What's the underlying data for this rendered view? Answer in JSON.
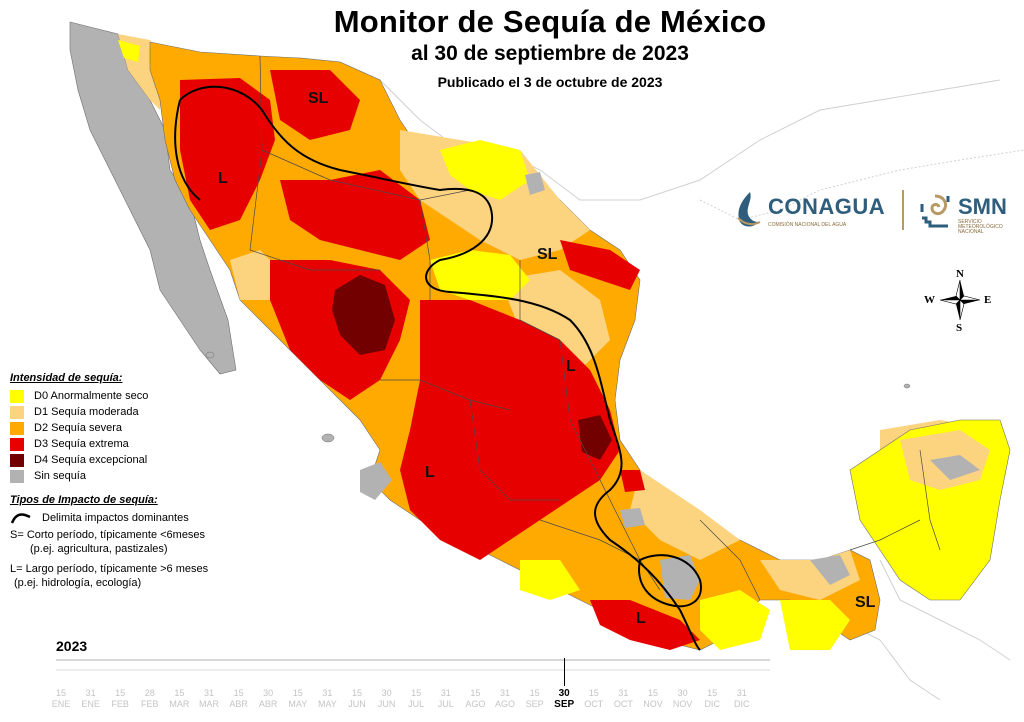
{
  "title": "Monitor de Sequía de México",
  "subtitle": "al 30 de septiembre de 2023",
  "published": "Publicado el 3 de octubre de 2023",
  "map_labels": [
    "SL",
    "L",
    "SL",
    "L",
    "L",
    "SL",
    "L"
  ],
  "legend": {
    "intensity_title": "Intensidad de sequía:",
    "categories": [
      {
        "label": "D0 Anormalmente seco",
        "color": "#ffff00"
      },
      {
        "label": "D1 Sequía moderada",
        "color": "#fcd37f"
      },
      {
        "label": "D2 Sequía severa",
        "color": "#ffaa00"
      },
      {
        "label": "D3 Sequía extrema",
        "color": "#e60000"
      },
      {
        "label": "D4 Sequía excepcional",
        "color": "#730000"
      },
      {
        "label": "Sin sequía",
        "color": "#b2b2b2"
      }
    ],
    "impact_title": "Tipos de Impacto de sequía:",
    "impact_line_label": "Delimita impactos dominantes",
    "short_term": "S= Corto período, típicamente <6meses",
    "short_term_eg": "(p.ej. agricultura, pastizales)",
    "long_term": "L= Largo período, típicamente >6 meses",
    "long_term_eg": "(p.ej. hidrología, ecología)"
  },
  "logos": {
    "conagua": "CONAGUA",
    "conagua_tag": "COMISIÓN NACIONAL DEL AGUA",
    "smn": "SMN",
    "smn_tag": "SERVICIO METEOROLÓGICO NACIONAL"
  },
  "compass": {
    "n": "N",
    "s": "S",
    "e": "E",
    "w": "W"
  },
  "timeline": {
    "year": "2023",
    "ticks": [
      {
        "day": "15",
        "month": "ENE"
      },
      {
        "day": "31",
        "month": "ENE"
      },
      {
        "day": "15",
        "month": "FEB"
      },
      {
        "day": "28",
        "month": "FEB"
      },
      {
        "day": "15",
        "month": "MAR"
      },
      {
        "day": "31",
        "month": "MAR"
      },
      {
        "day": "15",
        "month": "ABR"
      },
      {
        "day": "30",
        "month": "ABR"
      },
      {
        "day": "15",
        "month": "MAY"
      },
      {
        "day": "31",
        "month": "MAY"
      },
      {
        "day": "15",
        "month": "JUN"
      },
      {
        "day": "30",
        "month": "JUN"
      },
      {
        "day": "15",
        "month": "JUL"
      },
      {
        "day": "31",
        "month": "JUL"
      },
      {
        "day": "15",
        "month": "AGO"
      },
      {
        "day": "31",
        "month": "AGO"
      },
      {
        "day": "15",
        "month": "SEP"
      },
      {
        "day": "30",
        "month": "SEP"
      },
      {
        "day": "15",
        "month": "OCT"
      },
      {
        "day": "31",
        "month": "OCT"
      },
      {
        "day": "15",
        "month": "NOV"
      },
      {
        "day": "30",
        "month": "NOV"
      },
      {
        "day": "15",
        "month": "DIC"
      },
      {
        "day": "31",
        "month": "DIC"
      }
    ],
    "active_index": 17
  }
}
